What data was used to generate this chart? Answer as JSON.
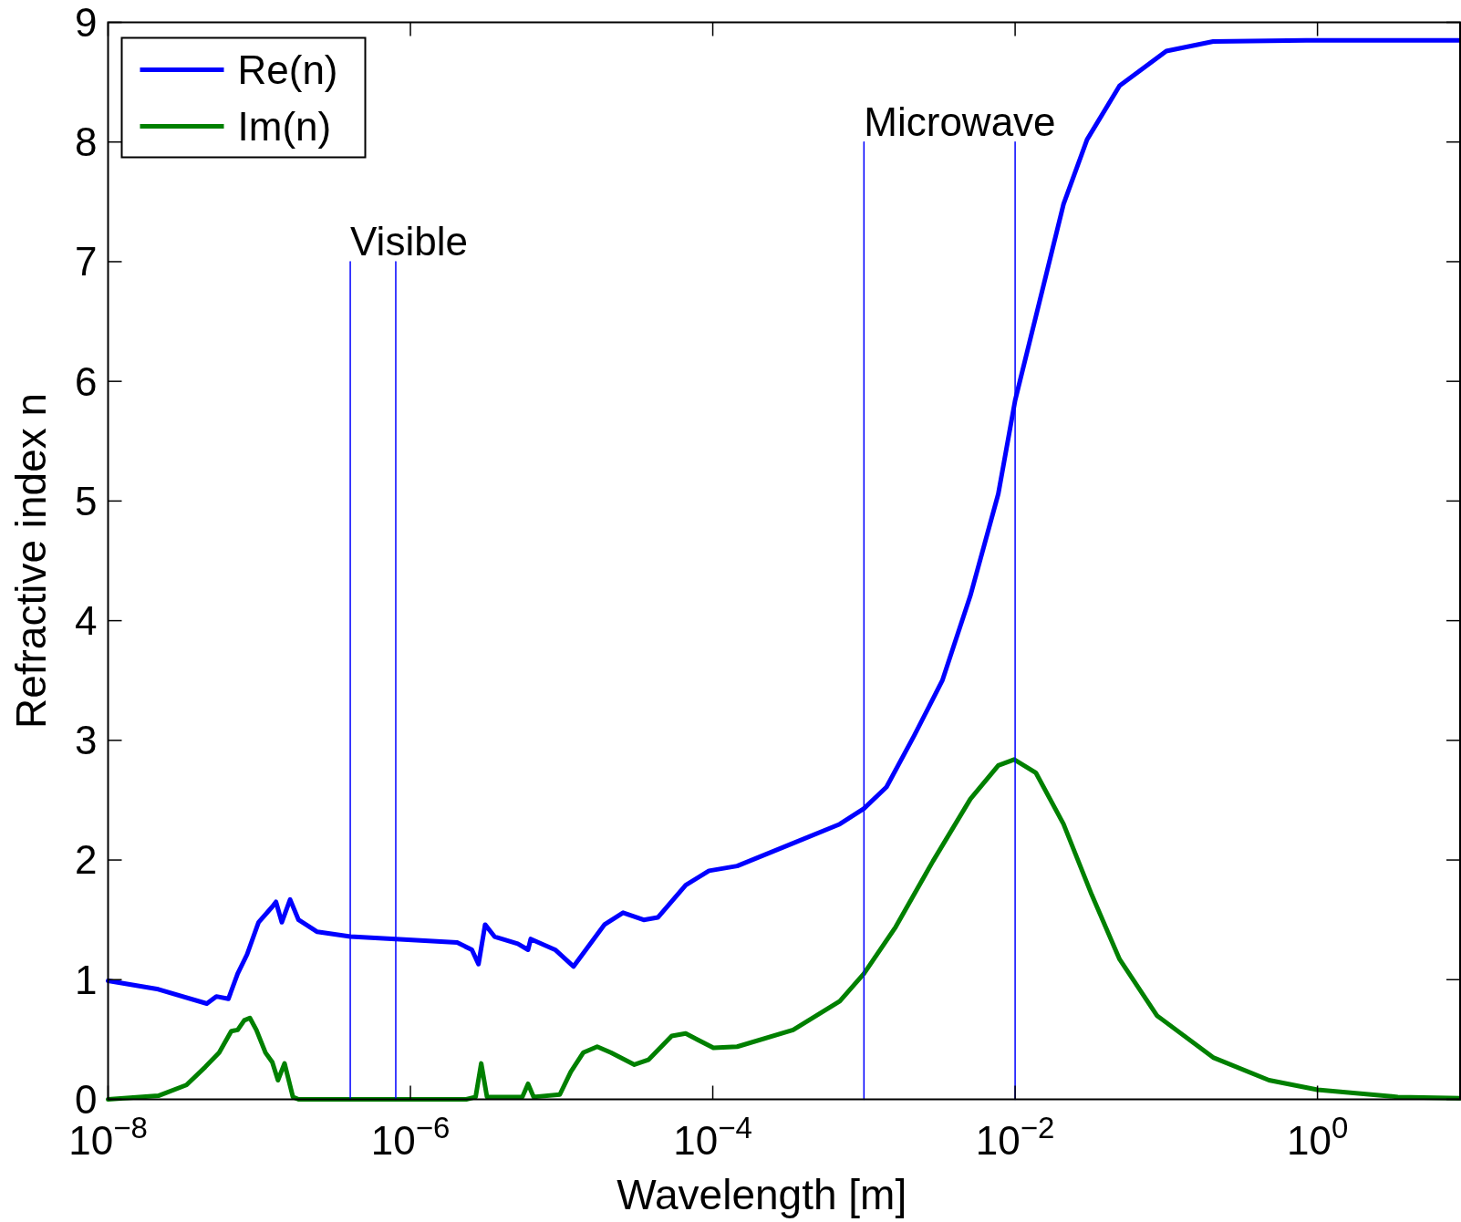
{
  "chart_data": {
    "type": "line",
    "xlabel": "Wavelength [m]",
    "ylabel": "Refractive index n",
    "log": "x",
    "grid": false,
    "legend": "top left",
    "marker": "none",
    "line_style": "solid",
    "xlim": [
      1e-08,
      8.9
    ],
    "ylim": [
      0,
      9
    ],
    "xticks": [
      {
        "value": 1e-08,
        "label": "10$^{−8}$"
      },
      {
        "value": 1e-06,
        "label": "10$^{−6}$"
      },
      {
        "value": 0.0001,
        "label": "10$^{−4}$"
      },
      {
        "value": 0.01,
        "label": "10$^{−2}$"
      },
      {
        "value": 1,
        "label": "10$^{0}$"
      }
    ],
    "yticks": [
      0,
      1,
      2,
      3,
      4,
      5,
      6,
      7,
      8,
      9
    ],
    "series": [
      {
        "name": "Re(n)",
        "color": "#0000ff",
        "x": [
          1e-08,
          2.15e-08,
          4.5e-08,
          5.2e-08,
          6.25e-08,
          7.2e-08,
          8.3e-08,
          9.9e-08,
          1.22e-07,
          1.29e-07,
          1.41e-07,
          1.6e-07,
          1.82e-07,
          2.42e-07,
          4e-07,
          8e-07,
          2.04e-06,
          2.55e-06,
          2.82e-06,
          3.12e-06,
          3.6e-06,
          5.13e-06,
          6e-06,
          6.25e-06,
          9.06e-06,
          1.2e-05,
          1.92e-05,
          2.55e-05,
          3.49e-05,
          4.33e-05,
          6.62e-05,
          9.44e-05,
          0.000145,
          0.00034,
          0.000692,
          0.001,
          0.00141,
          0.00215,
          0.0033,
          0.00506,
          0.00774,
          0.01,
          0.0137,
          0.0209,
          0.0299,
          0.0491,
          0.1,
          0.204,
          0.843,
          8.9
        ],
        "values": [
          0.99,
          0.92,
          0.8,
          0.86,
          0.84,
          1.05,
          1.21,
          1.48,
          1.61,
          1.65,
          1.48,
          1.67,
          1.5,
          1.4,
          1.36,
          1.34,
          1.31,
          1.25,
          1.13,
          1.46,
          1.36,
          1.3,
          1.25,
          1.34,
          1.25,
          1.11,
          1.46,
          1.56,
          1.5,
          1.52,
          1.79,
          1.91,
          1.95,
          2.14,
          2.3,
          2.43,
          2.61,
          3.04,
          3.5,
          4.21,
          5.06,
          5.84,
          6.54,
          7.48,
          8.02,
          8.47,
          8.76,
          8.84,
          8.85,
          8.85
        ]
      },
      {
        "name": "Im(n)",
        "color": "#008000",
        "x": [
          1e-08,
          2.15e-08,
          3.3e-08,
          4.39e-08,
          5.43e-08,
          6.53e-08,
          7.2e-08,
          7.96e-08,
          8.67e-08,
          9.57e-08,
          1.1e-07,
          1.22e-07,
          1.33e-07,
          1.47e-07,
          1.67e-07,
          1.82e-07,
          2.34e-06,
          2.7e-06,
          2.94e-06,
          3.21e-06,
          5.5e-06,
          6e-06,
          6.53e-06,
          9.73e-06,
          1.15e-05,
          1.39e-05,
          1.72e-05,
          2.12e-05,
          3.03e-05,
          3.75e-05,
          5.35e-05,
          6.62e-05,
          0.000101,
          0.000145,
          0.00034,
          0.000692,
          0.001,
          0.00162,
          0.00286,
          0.00506,
          0.00774,
          0.00986,
          0.0137,
          0.0209,
          0.0321,
          0.0491,
          0.0867,
          0.204,
          0.478,
          1,
          3.4,
          8.9
        ],
        "values": [
          0,
          0.03,
          0.12,
          0.27,
          0.39,
          0.57,
          0.58,
          0.66,
          0.68,
          0.58,
          0.39,
          0.31,
          0.16,
          0.3,
          0.02,
          0,
          0,
          0.02,
          0.3,
          0.02,
          0.02,
          0.13,
          0.02,
          0.04,
          0.23,
          0.39,
          0.44,
          0.39,
          0.29,
          0.33,
          0.53,
          0.55,
          0.43,
          0.44,
          0.58,
          0.82,
          1.05,
          1.44,
          1.99,
          2.51,
          2.79,
          2.84,
          2.73,
          2.3,
          1.71,
          1.17,
          0.7,
          0.35,
          0.16,
          0.08,
          0.02,
          0.01
        ]
      },
      {
        "color": "#0000ff",
        "x": [
          4e-07,
          4e-07
        ],
        "values": [
          0,
          7
        ]
      },
      {
        "color": "#0000ff",
        "x": [
          8e-07,
          8e-07
        ],
        "values": [
          0,
          7
        ]
      },
      {
        "color": "#0000ff",
        "x": [
          0.001,
          0.001
        ],
        "values": [
          0,
          8
        ]
      },
      {
        "color": "#0000ff",
        "x": [
          0.01,
          0.01
        ],
        "values": [
          0,
          8
        ]
      }
    ],
    "annotations": [
      {
        "text": "Visible",
        "x": 4e-07,
        "y": 7
      },
      {
        "text": "Microwave",
        "x": 0.001,
        "y": 8
      }
    ]
  }
}
